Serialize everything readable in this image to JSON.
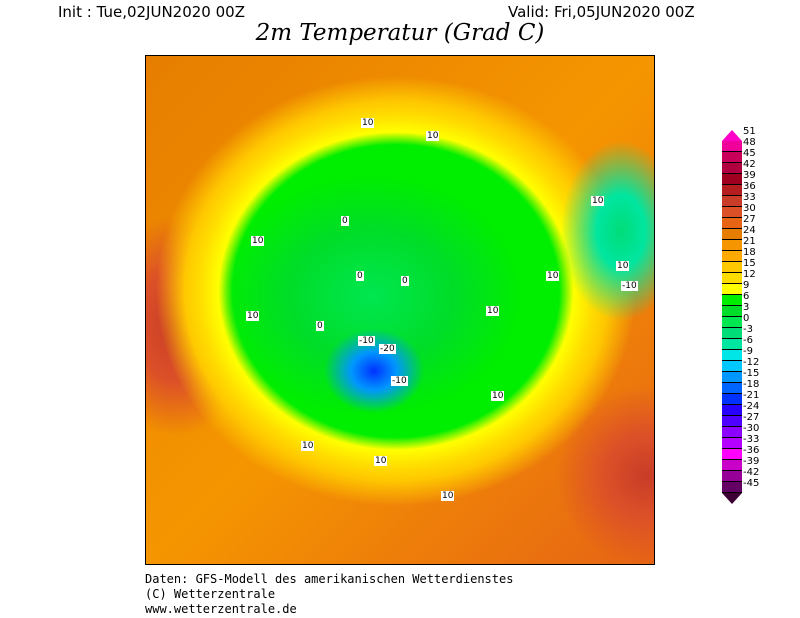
{
  "header": {
    "init": "Init : Tue,02JUN2020 00Z",
    "valid": "Valid: Fri,05JUN2020 00Z",
    "title": "2m Temperatur (Grad C)"
  },
  "colorbar": {
    "labels": [
      "51",
      "48",
      "45",
      "42",
      "39",
      "36",
      "33",
      "30",
      "27",
      "24",
      "21",
      "18",
      "15",
      "12",
      "9",
      "6",
      "3",
      "0",
      "-3",
      "-6",
      "-9",
      "-12",
      "-15",
      "-18",
      "-21",
      "-24",
      "-27",
      "-30",
      "-33",
      "-36",
      "-39",
      "-42",
      "-45"
    ],
    "colors": [
      "#f0009a",
      "#c8005a",
      "#b00040",
      "#a00020",
      "#b41e1e",
      "#c83c28",
      "#dc5028",
      "#e66414",
      "#e67d00",
      "#f59600",
      "#ffaa00",
      "#ffc800",
      "#ffdc00",
      "#ffff00",
      "#00ee00",
      "#00dd28",
      "#00e650",
      "#00dc78",
      "#00e6a0",
      "#00e6e6",
      "#00c8ff",
      "#0096ff",
      "#0064ff",
      "#0032ff",
      "#2800ff",
      "#5000ff",
      "#8c00ff",
      "#b400ff",
      "#ff00ff",
      "#c800c8",
      "#960096",
      "#640064"
    ],
    "top_arrow": "#ff00c8",
    "bottom_arrow": "#3c0032"
  },
  "map": {
    "contour_labels": [
      "10",
      "10",
      "10",
      "10",
      "10",
      "0",
      "0",
      "0",
      "-10",
      "-20",
      "-10",
      "10",
      "10",
      "10",
      "10",
      "-10",
      "10",
      "10",
      "0",
      "10"
    ]
  },
  "footer": {
    "line1": "Daten: GFS-Modell des amerikanischen Wetterdienstes",
    "line2": "(C) Wetterzentrale",
    "line3": "www.wetterzentrale.de"
  }
}
